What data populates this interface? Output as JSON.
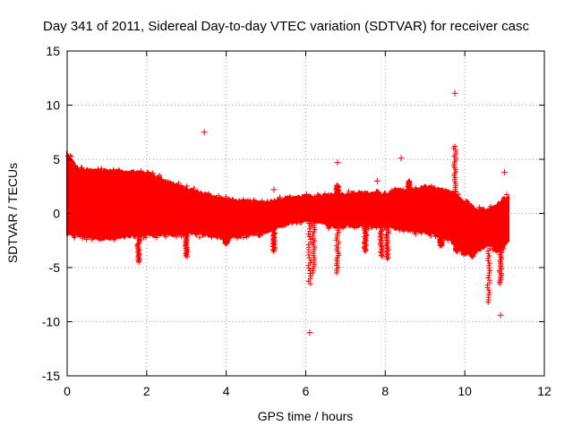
{
  "chart_data": {
    "type": "scatter",
    "title": "Day 341 of 2011, Sidereal Day-to-day VTEC variation (SDTVAR) for receiver casc",
    "xlabel": "GPS time / hours",
    "ylabel": "SDTVAR / TECUs",
    "xlim": [
      0,
      12
    ],
    "ylim": [
      -15,
      15
    ],
    "xticks": [
      0,
      2,
      4,
      6,
      8,
      10,
      12
    ],
    "yticks": [
      -15,
      -10,
      -5,
      0,
      5,
      10,
      15
    ],
    "grid": true,
    "marker": "+",
    "color": "#ff0000",
    "envelope": {
      "x": [
        0.0,
        0.1,
        0.3,
        0.6,
        1.0,
        1.5,
        2.0,
        2.5,
        3.0,
        3.5,
        4.0,
        4.5,
        5.0,
        5.3,
        5.6,
        6.0,
        6.3,
        6.6,
        7.0,
        7.5,
        8.0,
        8.3,
        8.6,
        9.0,
        9.3,
        9.6,
        9.8,
        10.0,
        10.3,
        10.6,
        10.8,
        11.0,
        11.1
      ],
      "upper": [
        5.5,
        5.0,
        4.0,
        4.0,
        4.0,
        3.9,
        3.8,
        3.0,
        2.3,
        1.8,
        1.3,
        1.1,
        1.0,
        1.3,
        1.5,
        1.6,
        1.6,
        1.7,
        1.8,
        1.9,
        1.7,
        2.2,
        2.0,
        2.5,
        2.3,
        2.0,
        1.8,
        1.0,
        0.5,
        0.3,
        0.8,
        1.5,
        1.5
      ],
      "lower": [
        -2.0,
        -2.0,
        -2.1,
        -2.2,
        -2.4,
        -2.2,
        -2.0,
        -2.0,
        -1.9,
        -2.0,
        -2.3,
        -2.0,
        -1.7,
        -1.3,
        -0.9,
        -0.7,
        -0.7,
        -1.2,
        -1.2,
        -1.2,
        -1.2,
        -1.4,
        -1.6,
        -1.8,
        -2.0,
        -2.4,
        -3.0,
        -3.8,
        -3.5,
        -2.8,
        -3.5,
        -3.0,
        -2.5
      ]
    },
    "spikes": [
      {
        "x": 1.8,
        "y": -4.5
      },
      {
        "x": 3.0,
        "y": -4.0
      },
      {
        "x": 4.0,
        "y": -2.8
      },
      {
        "x": 5.2,
        "y": -3.5
      },
      {
        "x": 6.1,
        "y": -6.5
      },
      {
        "x": 6.2,
        "y": -5.5
      },
      {
        "x": 6.8,
        "y": -5.5
      },
      {
        "x": 7.5,
        "y": -3.5
      },
      {
        "x": 7.9,
        "y": -4.0
      },
      {
        "x": 8.05,
        "y": -4.2
      },
      {
        "x": 9.4,
        "y": -3.0
      },
      {
        "x": 9.8,
        "y": -3.5
      },
      {
        "x": 10.2,
        "y": -4.0
      },
      {
        "x": 10.6,
        "y": -8.2
      },
      {
        "x": 10.9,
        "y": -6.5
      },
      {
        "x": 9.75,
        "y": 6.2
      },
      {
        "x": 8.6,
        "y": 3.0
      },
      {
        "x": 7.8,
        "y": 2.0
      },
      {
        "x": 6.8,
        "y": 2.6
      }
    ],
    "outliers": [
      {
        "x": 3.45,
        "y": 7.5
      },
      {
        "x": 9.75,
        "y": 11.1
      },
      {
        "x": 6.1,
        "y": -11.0
      },
      {
        "x": 10.9,
        "y": -9.4
      },
      {
        "x": 6.8,
        "y": 4.7
      },
      {
        "x": 8.4,
        "y": 5.1
      },
      {
        "x": 11.0,
        "y": 3.8
      },
      {
        "x": 7.8,
        "y": 3.0
      },
      {
        "x": 5.2,
        "y": 2.2
      }
    ]
  }
}
